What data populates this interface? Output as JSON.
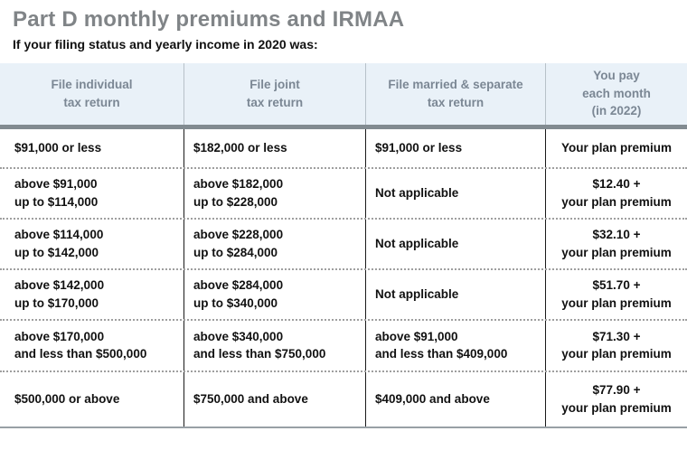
{
  "page": {
    "title": "Part D monthly premiums and IRMAA",
    "subtitle": "If your filing status and yearly income in 2020 was:"
  },
  "table": {
    "headers": [
      "File individual\ntax return",
      "File joint\ntax return",
      "File married & separate\ntax return",
      "You pay\neach month\n(in 2022)"
    ],
    "rows": [
      [
        "$91,000 or less",
        "$182,000 or less",
        "$91,000 or less",
        "Your plan premium"
      ],
      [
        "above $91,000\nup to $114,000",
        "above $182,000\nup to $228,000",
        "Not applicable",
        "$12.40 +\nyour plan premium"
      ],
      [
        "above $114,000\nup to $142,000",
        "above $228,000\nup to $284,000",
        "Not applicable",
        "$32.10 +\nyour plan premium"
      ],
      [
        "above $142,000\nup to $170,000",
        "above $284,000\nup to $340,000",
        "Not applicable",
        "$51.70 +\nyour plan premium"
      ],
      [
        "above $170,000\nand less than $500,000",
        "above $340,000\nand less than $750,000",
        "above $91,000\nand less than $409,000",
        "$71.30 +\nyour plan premium"
      ],
      [
        "$500,000 or above",
        "$750,000 and above",
        "$409,000 and above",
        "$77.90 +\nyour plan premium"
      ]
    ]
  },
  "colors": {
    "title_gray": "#808487",
    "header_bg": "#e9f1f8",
    "header_text": "#7b8794",
    "divider_gray": "#828b91",
    "body_text": "#111111",
    "dotted_separator": "#9f9f9f",
    "column_rule": "#1a1a1a",
    "bottom_border": "#98a0a5"
  }
}
